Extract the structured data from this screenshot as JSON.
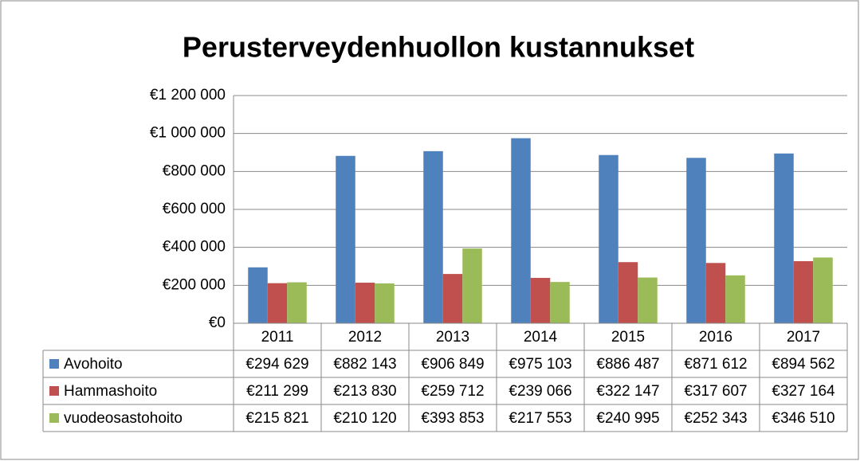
{
  "chart_data": {
    "type": "bar",
    "title": "Perusterveydenhuollon kustannukset",
    "categories": [
      "2011",
      "2012",
      "2013",
      "2014",
      "2015",
      "2016",
      "2017"
    ],
    "series": [
      {
        "name": "Avohoito",
        "color": "#4f81bd",
        "values": [
          294629,
          882143,
          906849,
          975103,
          886487,
          871612,
          894562
        ],
        "value_labels": [
          "€294 629",
          "€882 143",
          "€906 849",
          "€975 103",
          "€886 487",
          "€871 612",
          "€894 562"
        ]
      },
      {
        "name": "Hammashoito",
        "color": "#c0504d",
        "values": [
          211299,
          213830,
          259712,
          239066,
          322147,
          317607,
          327164
        ],
        "value_labels": [
          "€211 299",
          "€213 830",
          "€259 712",
          "€239 066",
          "€322 147",
          "€317 607",
          "€327 164"
        ]
      },
      {
        "name": "vuodeosastohoito",
        "color": "#9bbb59",
        "values": [
          215821,
          210120,
          393853,
          217553,
          240995,
          252343,
          346510
        ],
        "value_labels": [
          "€215 821",
          "€210 120",
          "€393 853",
          "€217 553",
          "€240 995",
          "€252 343",
          "€346 510"
        ]
      }
    ],
    "ylim": [
      0,
      1200000
    ],
    "yticks": [
      {
        "value": 0,
        "label": "€0"
      },
      {
        "value": 200000,
        "label": "€200 000"
      },
      {
        "value": 400000,
        "label": "€400 000"
      },
      {
        "value": 600000,
        "label": "€600 000"
      },
      {
        "value": 800000,
        "label": "€800 000"
      },
      {
        "value": 1000000,
        "label": "€1 000 000"
      },
      {
        "value": 1200000,
        "label": "€1 200 000"
      }
    ],
    "grid": true
  }
}
